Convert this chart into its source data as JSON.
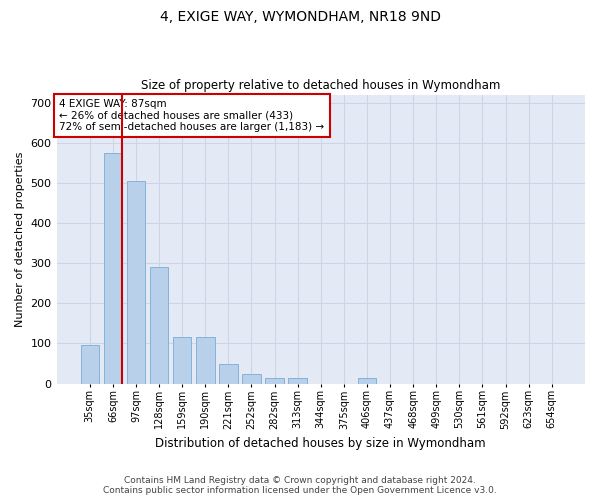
{
  "title": "4, EXIGE WAY, WYMONDHAM, NR18 9ND",
  "subtitle": "Size of property relative to detached houses in Wymondham",
  "xlabel": "Distribution of detached houses by size in Wymondham",
  "ylabel": "Number of detached properties",
  "footer_line1": "Contains HM Land Registry data © Crown copyright and database right 2024.",
  "footer_line2": "Contains public sector information licensed under the Open Government Licence v3.0.",
  "categories": [
    "35sqm",
    "66sqm",
    "97sqm",
    "128sqm",
    "159sqm",
    "190sqm",
    "221sqm",
    "252sqm",
    "282sqm",
    "313sqm",
    "344sqm",
    "375sqm",
    "406sqm",
    "437sqm",
    "468sqm",
    "499sqm",
    "530sqm",
    "561sqm",
    "592sqm",
    "623sqm",
    "654sqm"
  ],
  "values": [
    95,
    575,
    505,
    290,
    115,
    115,
    50,
    25,
    15,
    15,
    0,
    0,
    15,
    0,
    0,
    0,
    0,
    0,
    0,
    0,
    0
  ],
  "bar_color": "#b8d0ea",
  "bar_edge_color": "#7aacd4",
  "grid_color": "#ccd5e8",
  "background_color": "#e4eaf5",
  "vline_x_index": 1,
  "vline_color": "#cc0000",
  "annotation_text": "4 EXIGE WAY: 87sqm\n← 26% of detached houses are smaller (433)\n72% of semi-detached houses are larger (1,183) →",
  "annotation_box_facecolor": "#ffffff",
  "annotation_box_edgecolor": "#cc0000",
  "ylim": [
    0,
    720
  ],
  "yticks": [
    0,
    100,
    200,
    300,
    400,
    500,
    600,
    700
  ]
}
